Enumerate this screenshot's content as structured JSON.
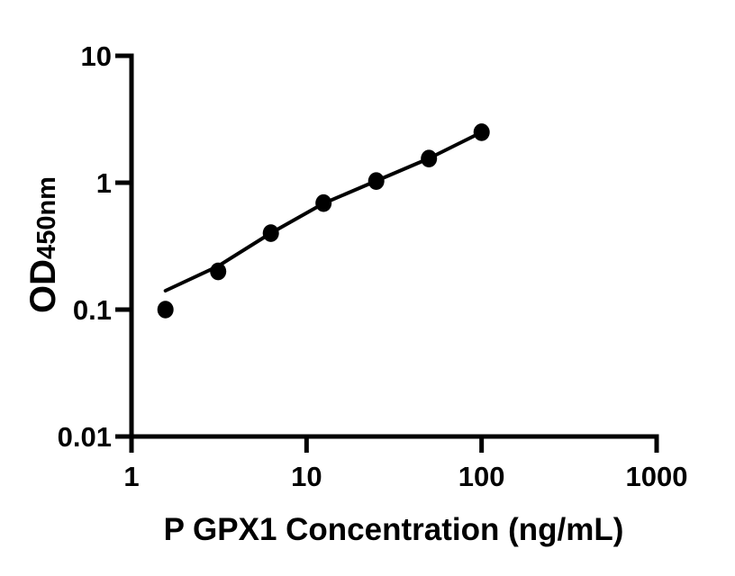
{
  "figure": {
    "background_color": "#ffffff",
    "axis_color": "#000000",
    "line_color": "#000000",
    "marker_color": "#000000"
  },
  "chart_data": {
    "type": "scatter",
    "title": "",
    "xlabel": "P GPX1 Concentration (ng/mL)",
    "ylabel_main": "OD",
    "ylabel_sub": "450nm",
    "x_scale": "log10",
    "y_scale": "log10",
    "xlim": [
      1,
      1000
    ],
    "ylim": [
      0.01,
      10
    ],
    "grid": false,
    "legend": null,
    "x_ticks": [
      {
        "value": 1,
        "label": "1"
      },
      {
        "value": 10,
        "label": "10"
      },
      {
        "value": 100,
        "label": "100"
      },
      {
        "value": 1000,
        "label": "1000"
      }
    ],
    "y_ticks": [
      {
        "value": 10,
        "label": "10"
      },
      {
        "value": 1,
        "label": "1"
      },
      {
        "value": 0.1,
        "label": "0.1"
      },
      {
        "value": 0.01,
        "label": "0.01"
      }
    ],
    "series": [
      {
        "name": "standard-curve-points",
        "marker": "filled-circle",
        "points": [
          {
            "x": 1.5625,
            "y": 0.1
          },
          {
            "x": 3.125,
            "y": 0.2
          },
          {
            "x": 6.25,
            "y": 0.4
          },
          {
            "x": 12.5,
            "y": 0.69
          },
          {
            "x": 25,
            "y": 1.03
          },
          {
            "x": 50,
            "y": 1.55
          },
          {
            "x": 100,
            "y": 2.5
          }
        ]
      }
    ],
    "fit_line": [
      {
        "x": 1.5625,
        "y": 0.141
      },
      {
        "x": 3.125,
        "y": 0.22
      },
      {
        "x": 6.25,
        "y": 0.401
      },
      {
        "x": 12.5,
        "y": 0.687
      },
      {
        "x": 25,
        "y": 1.033
      },
      {
        "x": 50,
        "y": 1.554
      },
      {
        "x": 100,
        "y": 2.5
      }
    ]
  }
}
